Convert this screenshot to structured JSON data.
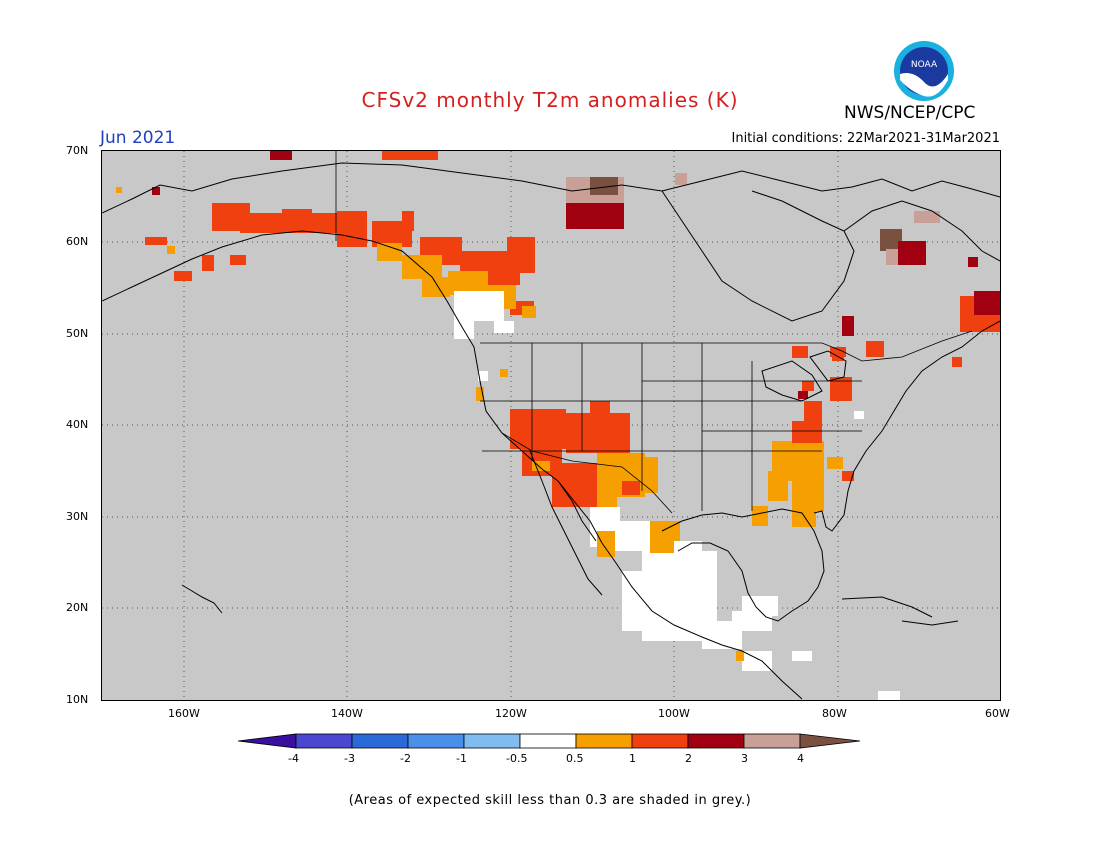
{
  "title": "CFSv2 monthly T2m anomalies (K)",
  "valid_month": "Jun 2021",
  "initial_conditions": "Initial conditions: 22Mar2021-31Mar2021",
  "organization": "NWS/NCEP/CPC",
  "logo_text": "NOAA",
  "footnote": "(Areas of expected skill less than 0.3 are shaded in grey.)",
  "lat_labels": [
    "70N",
    "60N",
    "50N",
    "40N",
    "30N",
    "20N",
    "10N"
  ],
  "lon_labels": [
    "160W",
    "140W",
    "120W",
    "100W",
    "80W",
    "60W"
  ],
  "colorbar": {
    "labels": [
      "-4",
      "-3",
      "-2",
      "-1",
      "-0.5",
      "0.5",
      "1",
      "2",
      "3",
      "4"
    ],
    "colors": [
      "#3a10a0",
      "#4a48d0",
      "#2a6ad8",
      "#4a90e8",
      "#80bcf0",
      "#ffffff",
      "#f5a000",
      "#f04010",
      "#a00010",
      "#c8a098",
      "#7a5040"
    ]
  }
}
